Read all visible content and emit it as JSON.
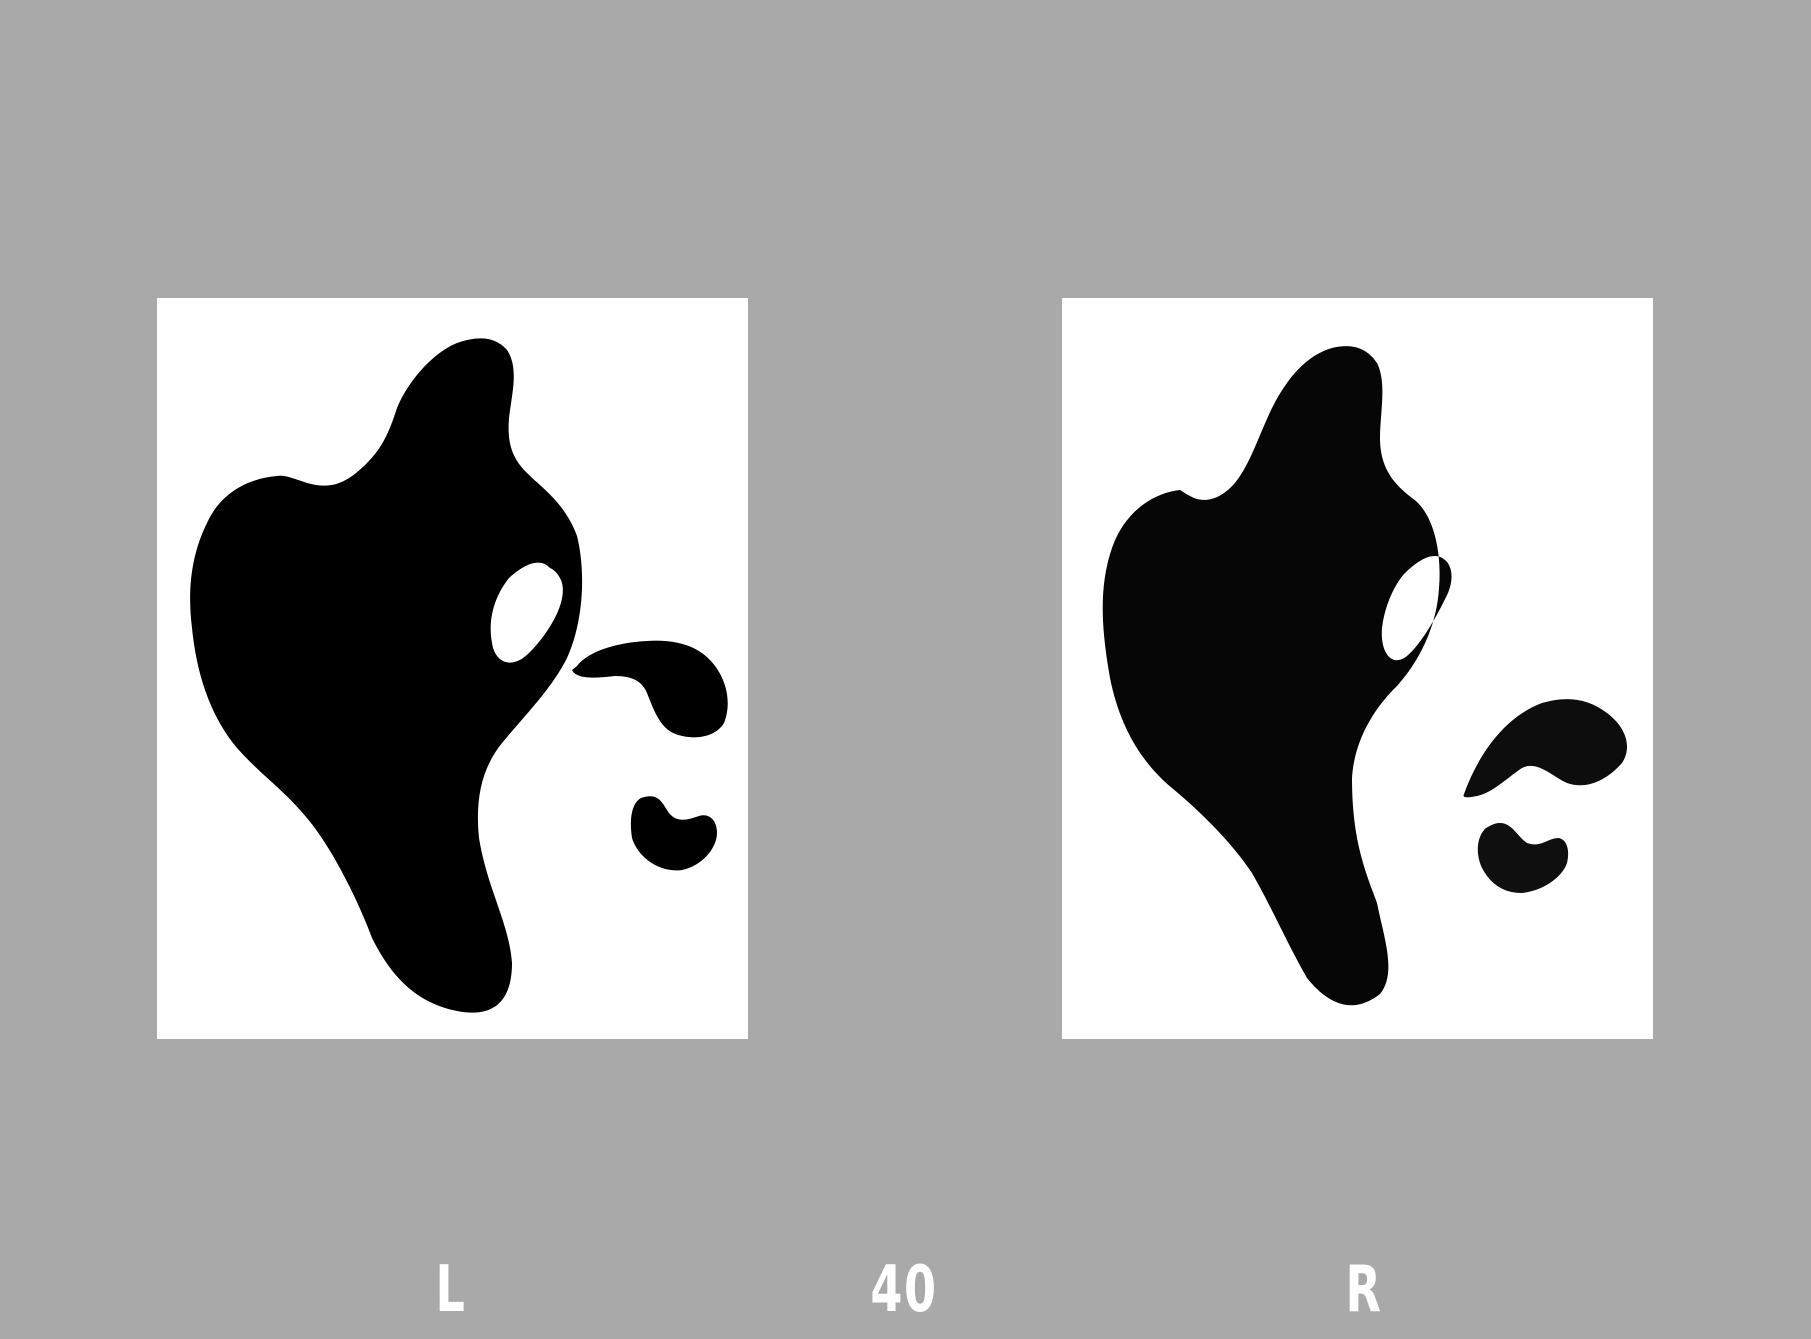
{
  "labels": {
    "left": "L",
    "center": "40",
    "right": "R"
  },
  "colors": {
    "background": "#a9a9a9",
    "panel": "#ffffff",
    "shape": "#000000",
    "label": "#ffffff"
  }
}
